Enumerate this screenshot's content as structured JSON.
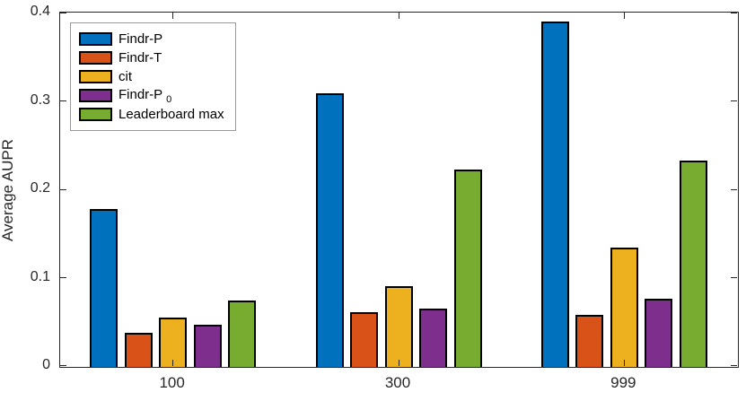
{
  "chart_data": {
    "type": "bar",
    "title": "",
    "xlabel": "",
    "ylabel": "Average AUPR",
    "categories": [
      "100",
      "300",
      "999"
    ],
    "series": [
      {
        "name": "Findr-P",
        "subscript": "",
        "color": "#0072BD",
        "values": [
          0.179,
          0.31,
          0.391
        ]
      },
      {
        "name": "Findr-T",
        "subscript": "",
        "color": "#D95319",
        "values": [
          0.039,
          0.062,
          0.059
        ]
      },
      {
        "name": "cit",
        "subscript": "",
        "color": "#EDB120",
        "values": [
          0.056,
          0.091,
          0.135
        ]
      },
      {
        "name": "Findr-P",
        "subscript": "0",
        "color": "#7E2F8E",
        "values": [
          0.048,
          0.066,
          0.077
        ]
      },
      {
        "name": "Leaderboard max",
        "subscript": "",
        "color": "#77AC30",
        "values": [
          0.075,
          0.223,
          0.234
        ]
      }
    ],
    "ylim": [
      0,
      0.4
    ],
    "yticks": [
      0,
      0.1,
      0.2,
      0.3,
      0.4
    ],
    "ytick_labels": [
      "0",
      "0.1",
      "0.2",
      "0.3",
      "0.4"
    ],
    "grid": false,
    "legend_position": "top-left",
    "bar_edge_color": "#000000",
    "axes_color": "#262626"
  }
}
